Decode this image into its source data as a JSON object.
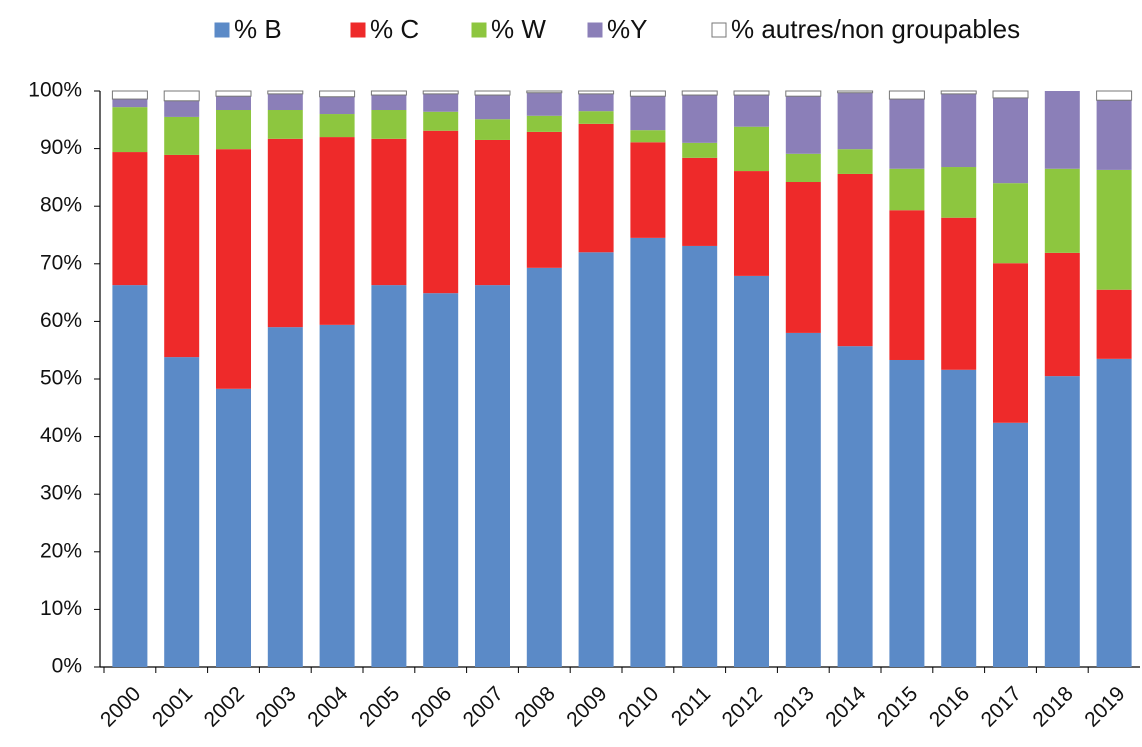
{
  "chart_data": {
    "type": "stacked_bar",
    "categories": [
      "2000",
      "2001",
      "2002",
      "2003",
      "2004",
      "2005",
      "2006",
      "2007",
      "2008",
      "2009",
      "2010",
      "2011",
      "2012",
      "2013",
      "2014",
      "2015",
      "2016",
      "2017",
      "2018",
      "2019"
    ],
    "series": [
      {
        "name": "% B",
        "color": "#5b8ac7",
        "values": [
          66.3,
          53.8,
          48.3,
          59.0,
          59.4,
          66.3,
          64.9,
          66.3,
          69.3,
          72.0,
          74.5,
          73.1,
          67.9,
          58.0,
          55.7,
          53.3,
          51.6,
          42.4,
          50.5,
          53.5
        ]
      },
      {
        "name": "% C",
        "color": "#ee2a2a",
        "values": [
          23.1,
          35.1,
          41.6,
          32.7,
          32.6,
          25.4,
          28.2,
          25.2,
          23.6,
          22.3,
          16.6,
          15.3,
          18.2,
          26.2,
          29.9,
          26.0,
          26.4,
          27.7,
          21.4,
          12.0
        ]
      },
      {
        "name": "% W",
        "color": "#8dc63f",
        "values": [
          7.8,
          6.6,
          6.8,
          5.0,
          4.0,
          5.0,
          3.3,
          3.6,
          2.8,
          2.2,
          2.1,
          2.6,
          7.7,
          4.9,
          4.3,
          7.2,
          8.8,
          13.9,
          14.6,
          20.8
        ]
      },
      {
        "name": "%Y",
        "color": "#8b7fb8",
        "values": [
          1.4,
          2.8,
          2.4,
          2.8,
          3.0,
          2.6,
          3.1,
          4.2,
          4.0,
          3.0,
          5.9,
          8.3,
          5.5,
          10.0,
          9.8,
          12.1,
          12.7,
          14.8,
          13.5,
          12.1
        ]
      },
      {
        "name": "% autres/non groupables",
        "color": "#ffffff",
        "values": [
          1.4,
          1.7,
          0.9,
          0.5,
          1.0,
          0.7,
          0.5,
          0.7,
          0.3,
          0.5,
          0.9,
          0.7,
          0.7,
          0.9,
          0.3,
          1.4,
          0.5,
          1.2,
          0.0,
          1.6
        ]
      }
    ],
    "ylim": [
      0,
      100
    ],
    "yticks": [
      {
        "value": 0,
        "label": "0%"
      },
      {
        "value": 10,
        "label": "10%"
      },
      {
        "value": 20,
        "label": "20%"
      },
      {
        "value": 30,
        "label": "30%"
      },
      {
        "value": 40,
        "label": "40%"
      },
      {
        "value": 50,
        "label": "50%"
      },
      {
        "value": 60,
        "label": "60%"
      },
      {
        "value": 70,
        "label": "70%"
      },
      {
        "value": 80,
        "label": "80%"
      },
      {
        "value": 90,
        "label": "90%"
      },
      {
        "value": 100,
        "label": "100%"
      }
    ],
    "legend": "top",
    "grid": false
  }
}
